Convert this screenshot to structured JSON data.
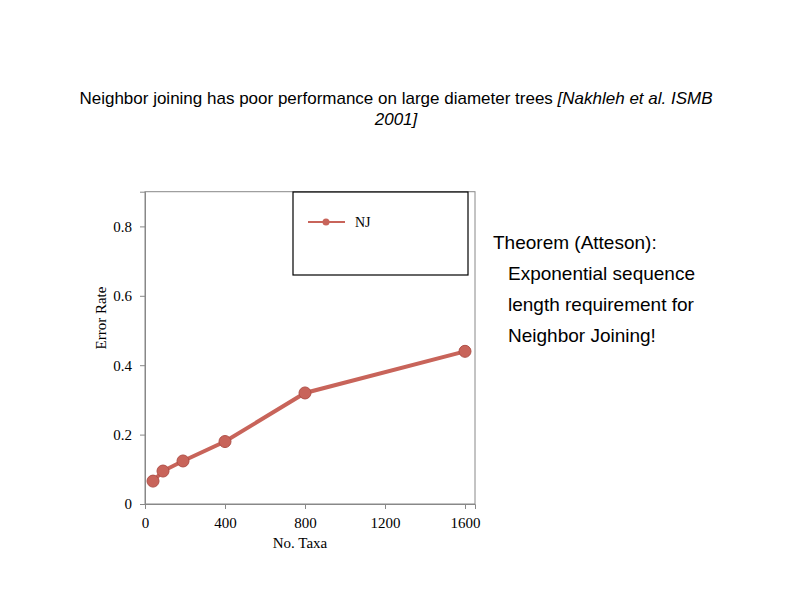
{
  "chart_data": {
    "type": "line",
    "title": "Neighbor joining has poor performance on large diameter trees",
    "subtitle": "[Nakhleh et al. ISMB 2001]",
    "annotations": [
      "Theorem (Atteson): Exponential sequence length requirement for Neighbor Joining!"
    ],
    "x_label": "No. Taxa",
    "y_label": "Error Rate",
    "x": [
      40,
      90,
      190,
      400,
      800,
      1600
    ],
    "series": [
      {
        "name": "NJ",
        "color": "#c8645a",
        "values": [
          0.066,
          0.095,
          0.124,
          0.18,
          0.32,
          0.44
        ],
        "marker": "circle",
        "line_style": "solid"
      }
    ],
    "xlim": [
      0,
      1650
    ],
    "ylim": [
      0,
      0.9
    ],
    "xticks": [
      0,
      400,
      800,
      1200,
      1600
    ],
    "yticks": [
      0,
      0.2,
      0.4,
      0.6,
      0.8
    ],
    "legend": "upper right",
    "grid": false
  }
}
